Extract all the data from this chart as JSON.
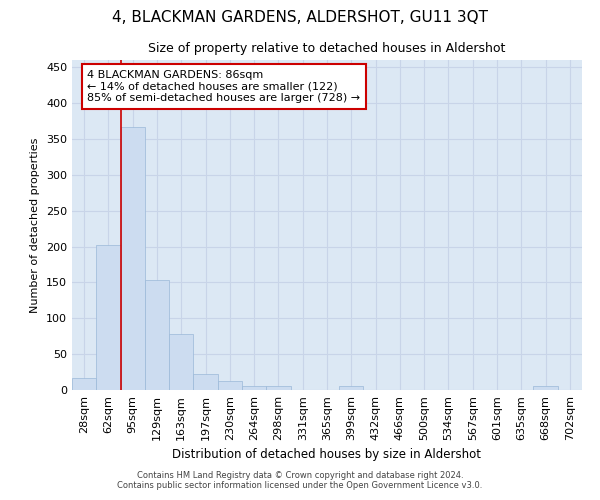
{
  "title": "4, BLACKMAN GARDENS, ALDERSHOT, GU11 3QT",
  "subtitle": "Size of property relative to detached houses in Aldershot",
  "xlabel": "Distribution of detached houses by size in Aldershot",
  "ylabel": "Number of detached properties",
  "categories": [
    "28sqm",
    "62sqm",
    "95sqm",
    "129sqm",
    "163sqm",
    "197sqm",
    "230sqm",
    "264sqm",
    "298sqm",
    "331sqm",
    "365sqm",
    "399sqm",
    "432sqm",
    "466sqm",
    "500sqm",
    "534sqm",
    "567sqm",
    "601sqm",
    "635sqm",
    "668sqm",
    "702sqm"
  ],
  "values": [
    17,
    202,
    367,
    153,
    78,
    22,
    13,
    6,
    5,
    0,
    0,
    5,
    0,
    0,
    0,
    0,
    0,
    0,
    0,
    5,
    0
  ],
  "bar_color": "#ccdcf0",
  "bar_edge_color": "#9ab8d8",
  "grid_color": "#c8d4e8",
  "background_color": "#dce8f4",
  "property_line_color": "#cc0000",
  "annotation_text": "4 BLACKMAN GARDENS: 86sqm\n← 14% of detached houses are smaller (122)\n85% of semi-detached houses are larger (728) →",
  "annotation_box_color": "#ffffff",
  "annotation_box_edge": "#cc0000",
  "footer_line1": "Contains HM Land Registry data © Crown copyright and database right 2024.",
  "footer_line2": "Contains public sector information licensed under the Open Government Licence v3.0.",
  "ylim": [
    0,
    460
  ],
  "figsize": [
    6.0,
    5.0
  ],
  "dpi": 100
}
